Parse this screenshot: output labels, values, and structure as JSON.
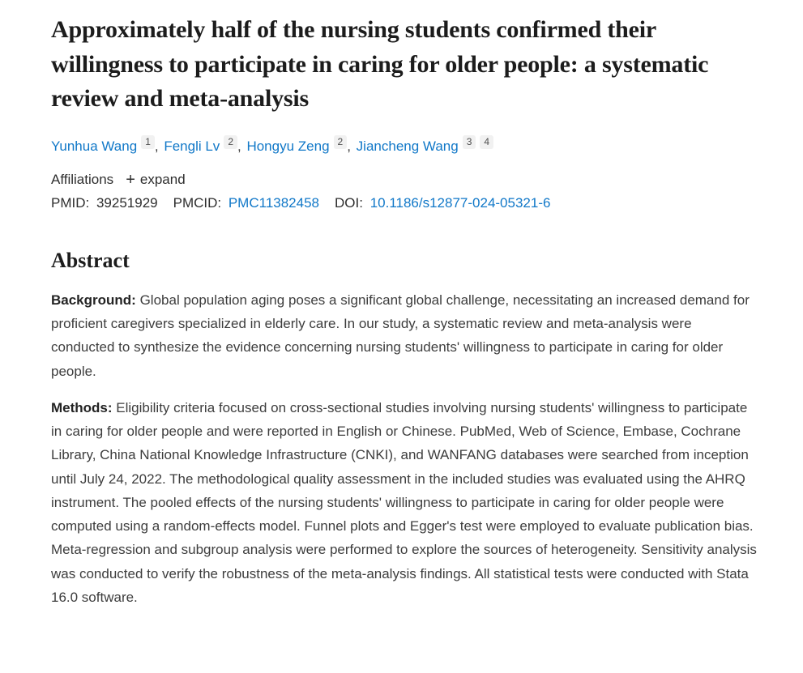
{
  "article": {
    "title": "Approximately half of the nursing students confirmed their willingness to participate in caring for older people: a systematic review and meta-analysis"
  },
  "authors": [
    {
      "name": "Yunhua Wang",
      "sups": [
        "1"
      ]
    },
    {
      "name": "Fengli Lv",
      "sups": [
        "2"
      ]
    },
    {
      "name": "Hongyu Zeng",
      "sups": [
        "2"
      ]
    },
    {
      "name": "Jiancheng Wang",
      "sups": [
        "3",
        "4"
      ]
    }
  ],
  "affiliations": {
    "label": "Affiliations",
    "plus_icon": "+",
    "expand_label": "expand"
  },
  "identifiers": {
    "pmid_label": "PMID:",
    "pmid_value": "39251929",
    "pmcid_label": "PMCID:",
    "pmcid_value": "PMC11382458",
    "doi_label": "DOI:",
    "doi_value": "10.1186/s12877-024-05321-6"
  },
  "abstract": {
    "heading": "Abstract",
    "sections": [
      {
        "label": "Background:",
        "text": "Global population aging poses a significant global challenge, necessitating an increased demand for proficient caregivers specialized in elderly care. In our study, a systematic review and meta-analysis were conducted to synthesize the evidence concerning nursing students' willingness to participate in caring for older people."
      },
      {
        "label": "Methods:",
        "text": "Eligibility criteria focused on cross-sectional studies involving nursing students' willingness to participate in caring for older people and were reported in English or Chinese. PubMed, Web of Science, Embase, Cochrane Library, China National Knowledge Infrastructure (CNKI), and WANFANG databases were searched from inception until July 24, 2022. The methodological quality assessment in the included studies was evaluated using the AHRQ instrument. The pooled effects of the nursing students' willingness to participate in caring for older people were computed using a random-effects model. Funnel plots and Egger's test were employed to evaluate publication bias. Meta-regression and subgroup analysis were performed to explore the sources of heterogeneity. Sensitivity analysis was conducted to verify the robustness of the meta-analysis findings. All statistical tests were conducted with Stata 16.0 software."
      }
    ]
  },
  "colors": {
    "link": "#1178c8",
    "title_text": "#1c1c1c",
    "body_text": "#3d3d3d",
    "chip_background": "#f1f1f1"
  }
}
